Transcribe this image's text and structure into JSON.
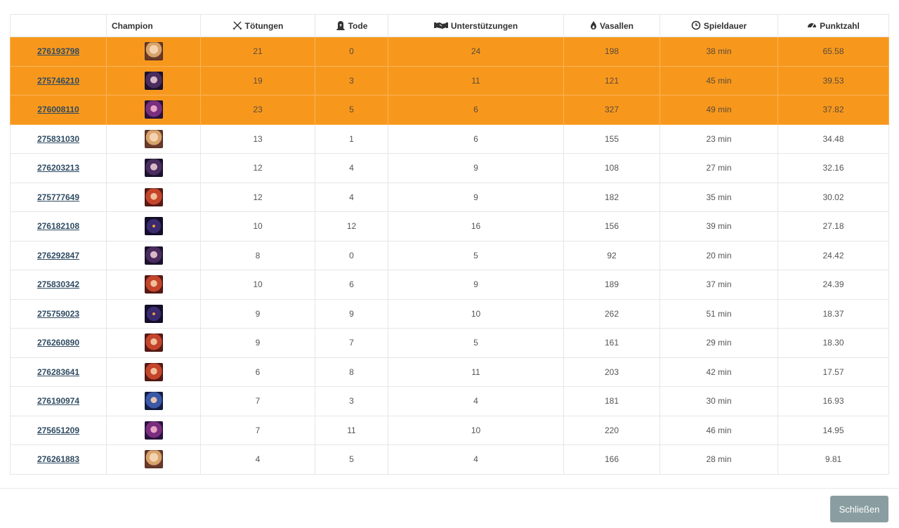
{
  "table": {
    "headers": {
      "game": "",
      "champion": "Champion",
      "kills": "Tötungen",
      "deaths": "Tode",
      "assists": "Unterstützungen",
      "minions": "Vasallen",
      "duration": "Spieldauer",
      "score": "Punktzahl"
    },
    "header_icons": {
      "kills": "crossed-swords-icon",
      "deaths": "tombstone-icon",
      "assists": "handshake-icon",
      "minions": "flame-icon",
      "duration": "clock-icon",
      "score": "gauge-icon"
    },
    "highlight_color": "#f7981d",
    "rows": [
      {
        "game": "276193798",
        "champion_icon": "champion-portrait-blonde-icon",
        "kills": "21",
        "deaths": "0",
        "assists": "24",
        "minions": "198",
        "duration": "38 min",
        "score": "65.58",
        "highlighted": true
      },
      {
        "game": "275746210",
        "champion_icon": "champion-portrait-dark-mage-icon",
        "kills": "19",
        "deaths": "3",
        "assists": "11",
        "minions": "121",
        "duration": "45 min",
        "score": "39.53",
        "highlighted": true
      },
      {
        "game": "276008110",
        "champion_icon": "champion-portrait-purple-icon",
        "kills": "23",
        "deaths": "5",
        "assists": "6",
        "minions": "327",
        "duration": "49 min",
        "score": "37.82",
        "highlighted": true
      },
      {
        "game": "275831030",
        "champion_icon": "champion-portrait-blonde-icon",
        "kills": "13",
        "deaths": "1",
        "assists": "6",
        "minions": "155",
        "duration": "23 min",
        "score": "34.48",
        "highlighted": false
      },
      {
        "game": "276203213",
        "champion_icon": "champion-portrait-dark-mage-icon",
        "kills": "12",
        "deaths": "4",
        "assists": "9",
        "minions": "108",
        "duration": "27 min",
        "score": "32.16",
        "highlighted": false
      },
      {
        "game": "275777649",
        "champion_icon": "champion-portrait-redhead-icon",
        "kills": "12",
        "deaths": "4",
        "assists": "9",
        "minions": "182",
        "duration": "35 min",
        "score": "30.02",
        "highlighted": false
      },
      {
        "game": "276182108",
        "champion_icon": "champion-portrait-shadow-icon",
        "kills": "10",
        "deaths": "12",
        "assists": "16",
        "minions": "156",
        "duration": "39 min",
        "score": "27.18",
        "highlighted": false
      },
      {
        "game": "276292847",
        "champion_icon": "champion-portrait-dark-mage-icon",
        "kills": "8",
        "deaths": "0",
        "assists": "5",
        "minions": "92",
        "duration": "20 min",
        "score": "24.42",
        "highlighted": false
      },
      {
        "game": "275830342",
        "champion_icon": "champion-portrait-redhead-icon",
        "kills": "10",
        "deaths": "6",
        "assists": "9",
        "minions": "189",
        "duration": "37 min",
        "score": "24.39",
        "highlighted": false
      },
      {
        "game": "275759023",
        "champion_icon": "champion-portrait-shadow-icon",
        "kills": "9",
        "deaths": "9",
        "assists": "10",
        "minions": "262",
        "duration": "51 min",
        "score": "18.37",
        "highlighted": false
      },
      {
        "game": "276260890",
        "champion_icon": "champion-portrait-redhead-icon",
        "kills": "9",
        "deaths": "7",
        "assists": "5",
        "minions": "161",
        "duration": "29 min",
        "score": "18.30",
        "highlighted": false
      },
      {
        "game": "276283641",
        "champion_icon": "champion-portrait-redhead-icon",
        "kills": "6",
        "deaths": "8",
        "assists": "11",
        "minions": "203",
        "duration": "42 min",
        "score": "17.57",
        "highlighted": false
      },
      {
        "game": "276190974",
        "champion_icon": "champion-portrait-blue-armor-icon",
        "kills": "7",
        "deaths": "3",
        "assists": "4",
        "minions": "181",
        "duration": "30 min",
        "score": "16.93",
        "highlighted": false
      },
      {
        "game": "275651209",
        "champion_icon": "champion-portrait-purple-icon",
        "kills": "7",
        "deaths": "11",
        "assists": "10",
        "minions": "220",
        "duration": "46 min",
        "score": "14.95",
        "highlighted": false
      },
      {
        "game": "276261883",
        "champion_icon": "champion-portrait-blonde-icon",
        "kills": "4",
        "deaths": "5",
        "assists": "4",
        "minions": "166",
        "duration": "28 min",
        "score": "9.81",
        "highlighted": false
      }
    ]
  },
  "footer": {
    "close_label": "Schließen",
    "close_color": "#8a9ea1"
  }
}
